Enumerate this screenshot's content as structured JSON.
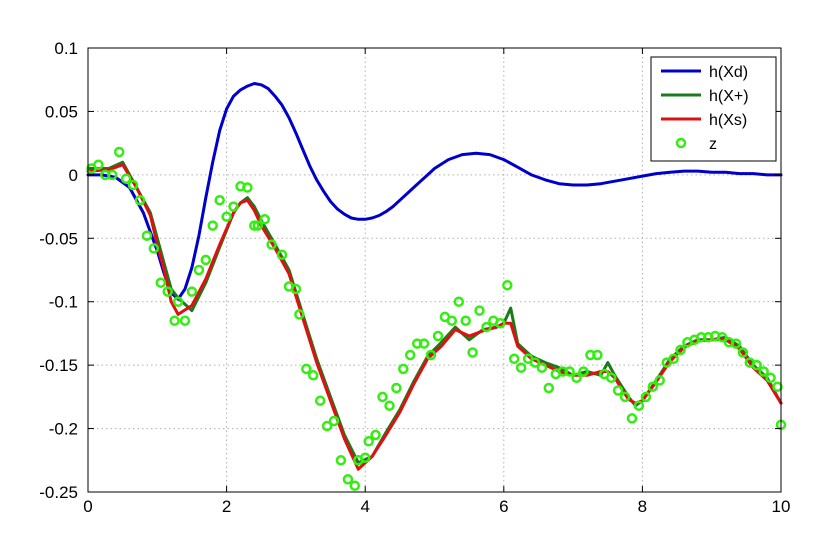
{
  "chart_data": {
    "type": "line",
    "title": "",
    "xlabel": "",
    "ylabel": "",
    "xlim": [
      0,
      10
    ],
    "ylim": [
      -0.25,
      0.1
    ],
    "xticks": [
      "0",
      "2",
      "4",
      "6",
      "8",
      "10"
    ],
    "yticks": [
      "0.1",
      "0.05",
      "0",
      "-0.05",
      "-0.1",
      "-0.15",
      "-0.2",
      "-0.25"
    ],
    "grid": true,
    "legend_position": "top-right",
    "colors": {
      "h_xd": "#0000cc",
      "h_xplus": "#1b7a1b",
      "h_xs": "#dd1111",
      "z": "#33ee11"
    },
    "series": [
      {
        "name": "h(Xd)",
        "style": "line",
        "x": [
          0,
          0.2,
          0.4,
          0.6,
          0.8,
          1.0,
          1.1,
          1.2,
          1.3,
          1.4,
          1.5,
          1.6,
          1.7,
          1.8,
          1.9,
          2.0,
          2.1,
          2.2,
          2.3,
          2.4,
          2.5,
          2.6,
          2.7,
          2.8,
          2.9,
          3.0,
          3.1,
          3.2,
          3.3,
          3.4,
          3.5,
          3.6,
          3.7,
          3.8,
          3.9,
          4.0,
          4.1,
          4.2,
          4.3,
          4.4,
          4.5,
          4.6,
          4.7,
          4.8,
          4.9,
          5.0,
          5.2,
          5.4,
          5.6,
          5.8,
          6.0,
          6.2,
          6.4,
          6.6,
          6.8,
          7.0,
          7.2,
          7.4,
          7.6,
          7.8,
          8.0,
          8.2,
          8.4,
          8.6,
          8.8,
          9.0,
          9.2,
          9.4,
          9.6,
          9.8,
          10.0
        ],
        "y": [
          0,
          0,
          -0.002,
          -0.01,
          -0.03,
          -0.06,
          -0.078,
          -0.093,
          -0.098,
          -0.09,
          -0.073,
          -0.048,
          -0.018,
          0.01,
          0.035,
          0.052,
          0.062,
          0.067,
          0.07,
          0.072,
          0.071,
          0.068,
          0.062,
          0.055,
          0.045,
          0.033,
          0.02,
          0.007,
          -0.004,
          -0.013,
          -0.021,
          -0.027,
          -0.031,
          -0.034,
          -0.035,
          -0.035,
          -0.034,
          -0.032,
          -0.029,
          -0.025,
          -0.02,
          -0.015,
          -0.01,
          -0.005,
          0.0,
          0.005,
          0.012,
          0.016,
          0.017,
          0.016,
          0.012,
          0.006,
          0.0,
          -0.004,
          -0.007,
          -0.008,
          -0.008,
          -0.007,
          -0.005,
          -0.003,
          -0.001,
          0.001,
          0.002,
          0.003,
          0.003,
          0.002,
          0.002,
          0.001,
          0.001,
          0.0,
          0.0
        ]
      },
      {
        "name": "h(X+)",
        "style": "line",
        "x": [
          0,
          0.3,
          0.5,
          0.7,
          0.9,
          1.0,
          1.1,
          1.2,
          1.3,
          1.5,
          1.7,
          1.9,
          2.1,
          2.2,
          2.3,
          2.4,
          2.5,
          2.7,
          2.9,
          3.1,
          3.3,
          3.5,
          3.7,
          3.9,
          4.1,
          4.3,
          4.5,
          4.7,
          4.9,
          5.1,
          5.3,
          5.5,
          5.7,
          5.9,
          6.0,
          6.1,
          6.2,
          6.4,
          6.6,
          6.8,
          7.0,
          7.2,
          7.4,
          7.5,
          7.6,
          7.8,
          7.9,
          8.0,
          8.2,
          8.4,
          8.6,
          8.8,
          9.0,
          9.2,
          9.4,
          9.6,
          9.8,
          10.0
        ],
        "y": [
          0.005,
          0.005,
          0.01,
          -0.01,
          -0.03,
          -0.05,
          -0.07,
          -0.09,
          -0.097,
          -0.107,
          -0.085,
          -0.057,
          -0.03,
          -0.022,
          -0.018,
          -0.025,
          -0.036,
          -0.055,
          -0.075,
          -0.11,
          -0.145,
          -0.175,
          -0.205,
          -0.227,
          -0.222,
          -0.203,
          -0.185,
          -0.163,
          -0.143,
          -0.132,
          -0.12,
          -0.13,
          -0.122,
          -0.12,
          -0.117,
          -0.105,
          -0.133,
          -0.143,
          -0.148,
          -0.152,
          -0.158,
          -0.155,
          -0.158,
          -0.148,
          -0.158,
          -0.175,
          -0.182,
          -0.178,
          -0.162,
          -0.145,
          -0.135,
          -0.13,
          -0.13,
          -0.128,
          -0.135,
          -0.15,
          -0.16,
          -0.18
        ]
      },
      {
        "name": "h(Xs)",
        "style": "line",
        "x": [
          0,
          0.3,
          0.5,
          0.7,
          0.9,
          1.0,
          1.1,
          1.2,
          1.3,
          1.5,
          1.7,
          1.9,
          2.1,
          2.2,
          2.3,
          2.4,
          2.5,
          2.7,
          2.9,
          3.1,
          3.3,
          3.5,
          3.7,
          3.9,
          4.1,
          4.3,
          4.5,
          4.7,
          4.9,
          5.1,
          5.3,
          5.5,
          5.7,
          5.9,
          6.0,
          6.1,
          6.2,
          6.4,
          6.6,
          6.8,
          7.0,
          7.2,
          7.4,
          7.5,
          7.6,
          7.8,
          7.9,
          8.0,
          8.2,
          8.4,
          8.6,
          8.8,
          9.0,
          9.2,
          9.4,
          9.6,
          9.8,
          10.0
        ],
        "y": [
          0.003,
          0.004,
          0.008,
          -0.01,
          -0.032,
          -0.055,
          -0.075,
          -0.1,
          -0.11,
          -0.103,
          -0.082,
          -0.055,
          -0.03,
          -0.022,
          -0.02,
          -0.028,
          -0.04,
          -0.058,
          -0.078,
          -0.113,
          -0.148,
          -0.178,
          -0.208,
          -0.232,
          -0.222,
          -0.205,
          -0.187,
          -0.165,
          -0.145,
          -0.135,
          -0.122,
          -0.127,
          -0.123,
          -0.12,
          -0.117,
          -0.117,
          -0.135,
          -0.145,
          -0.15,
          -0.155,
          -0.158,
          -0.158,
          -0.155,
          -0.155,
          -0.16,
          -0.177,
          -0.18,
          -0.178,
          -0.163,
          -0.147,
          -0.136,
          -0.131,
          -0.13,
          -0.13,
          -0.137,
          -0.152,
          -0.162,
          -0.18
        ]
      },
      {
        "name": "z",
        "style": "markers",
        "x": [
          0.05,
          0.15,
          0.25,
          0.35,
          0.45,
          0.55,
          0.65,
          0.75,
          0.85,
          0.95,
          1.05,
          1.15,
          1.25,
          1.3,
          1.4,
          1.5,
          1.6,
          1.7,
          1.8,
          1.9,
          2.0,
          2.1,
          2.2,
          2.3,
          2.4,
          2.45,
          2.55,
          2.65,
          2.8,
          2.9,
          3.0,
          3.05,
          3.15,
          3.25,
          3.35,
          3.45,
          3.55,
          3.65,
          3.75,
          3.85,
          3.9,
          4.0,
          4.05,
          4.15,
          4.25,
          4.35,
          4.45,
          4.55,
          4.65,
          4.75,
          4.85,
          4.95,
          5.05,
          5.15,
          5.25,
          5.35,
          5.45,
          5.55,
          5.65,
          5.75,
          5.85,
          5.95,
          6.05,
          6.15,
          6.25,
          6.35,
          6.45,
          6.55,
          6.65,
          6.75,
          6.85,
          6.95,
          7.05,
          7.15,
          7.25,
          7.35,
          7.45,
          7.55,
          7.65,
          7.75,
          7.85,
          7.95,
          8.05,
          8.15,
          8.25,
          8.35,
          8.45,
          8.55,
          8.65,
          8.75,
          8.85,
          8.95,
          9.05,
          9.15,
          9.25,
          9.35,
          9.45,
          9.55,
          9.65,
          9.75,
          9.85,
          9.95,
          10.0
        ],
        "y": [
          0.005,
          0.008,
          0.0,
          0.0,
          0.018,
          -0.003,
          -0.008,
          -0.02,
          -0.048,
          -0.058,
          -0.085,
          -0.092,
          -0.115,
          -0.1,
          -0.115,
          -0.092,
          -0.075,
          -0.067,
          -0.04,
          -0.02,
          -0.033,
          -0.025,
          -0.009,
          -0.01,
          -0.04,
          -0.04,
          -0.035,
          -0.055,
          -0.063,
          -0.088,
          -0.09,
          -0.11,
          -0.153,
          -0.158,
          -0.178,
          -0.198,
          -0.194,
          -0.225,
          -0.24,
          -0.245,
          -0.225,
          -0.223,
          -0.21,
          -0.205,
          -0.175,
          -0.182,
          -0.168,
          -0.153,
          -0.142,
          -0.133,
          -0.133,
          -0.142,
          -0.127,
          -0.112,
          -0.115,
          -0.1,
          -0.115,
          -0.14,
          -0.107,
          -0.12,
          -0.115,
          -0.117,
          -0.087,
          -0.145,
          -0.152,
          -0.145,
          -0.148,
          -0.152,
          -0.168,
          -0.157,
          -0.155,
          -0.155,
          -0.16,
          -0.155,
          -0.142,
          -0.142,
          -0.157,
          -0.16,
          -0.17,
          -0.175,
          -0.192,
          -0.182,
          -0.175,
          -0.167,
          -0.162,
          -0.148,
          -0.145,
          -0.138,
          -0.132,
          -0.13,
          -0.128,
          -0.128,
          -0.127,
          -0.128,
          -0.132,
          -0.133,
          -0.14,
          -0.148,
          -0.15,
          -0.155,
          -0.16,
          -0.167,
          -0.197
        ]
      }
    ]
  }
}
